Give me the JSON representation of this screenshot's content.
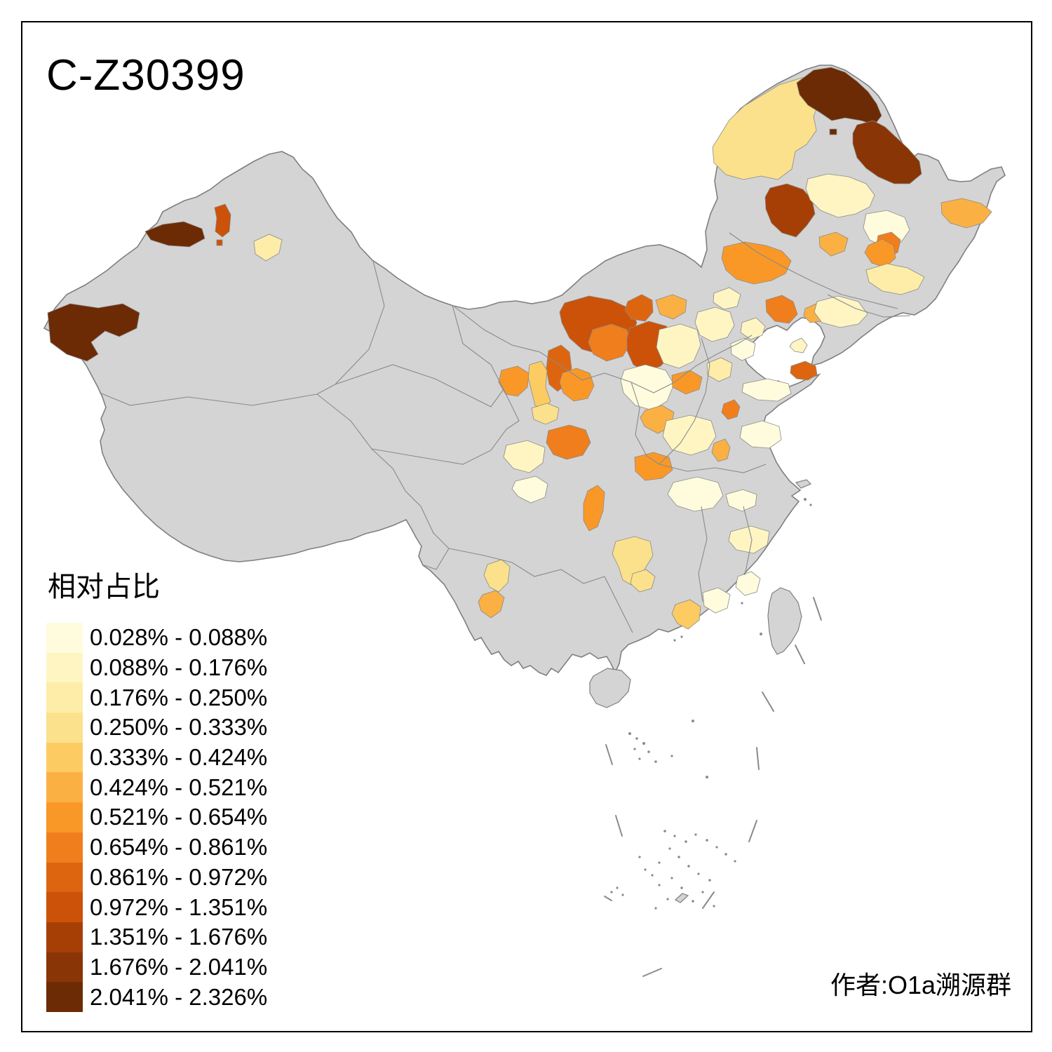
{
  "title": "C-Z30399",
  "author": "作者:O1a溯源群",
  "legend": {
    "title": "相对占比",
    "items": [
      {
        "range": "0.028% - 0.088%",
        "color": "#FFFCDE"
      },
      {
        "range": "0.088% - 0.176%",
        "color": "#FEF5C3"
      },
      {
        "range": "0.176% - 0.250%",
        "color": "#FDEDA8"
      },
      {
        "range": "0.250% - 0.333%",
        "color": "#FCE18C"
      },
      {
        "range": "0.333% - 0.424%",
        "color": "#FCCC63"
      },
      {
        "range": "0.424% - 0.521%",
        "color": "#FBB044"
      },
      {
        "range": "0.521% - 0.654%",
        "color": "#FA9827"
      },
      {
        "range": "0.654% - 0.861%",
        "color": "#F07E1C"
      },
      {
        "range": "0.861% - 0.972%",
        "color": "#DE650F"
      },
      {
        "range": "0.972% - 1.351%",
        "color": "#CB5208"
      },
      {
        "range": "1.351% - 1.676%",
        "color": "#A63F06"
      },
      {
        "range": "1.676% - 2.041%",
        "color": "#8A3505"
      },
      {
        "range": "2.041% - 2.326%",
        "color": "#6C2B05"
      }
    ]
  },
  "map": {
    "land_fill": "#D4D4D4",
    "boundary_color": "#8A8A8A",
    "outline_color": "#7F7F7F",
    "frame_color": "#000000",
    "background": "#FFFFFF",
    "regions": [
      13,
      10,
      10,
      3,
      13,
      4,
      13,
      12,
      13,
      11,
      7,
      2,
      1,
      6,
      8,
      7,
      6,
      3,
      8,
      6,
      2,
      9,
      10,
      8,
      10,
      9,
      6,
      9,
      5,
      7,
      7,
      4,
      8,
      2,
      1,
      2,
      7,
      6,
      7,
      8,
      6,
      2,
      1,
      3,
      2,
      1,
      7,
      1,
      4,
      6,
      4,
      2,
      1,
      5,
      1,
      1,
      4,
      1,
      2,
      2,
      2,
      1
    ]
  }
}
